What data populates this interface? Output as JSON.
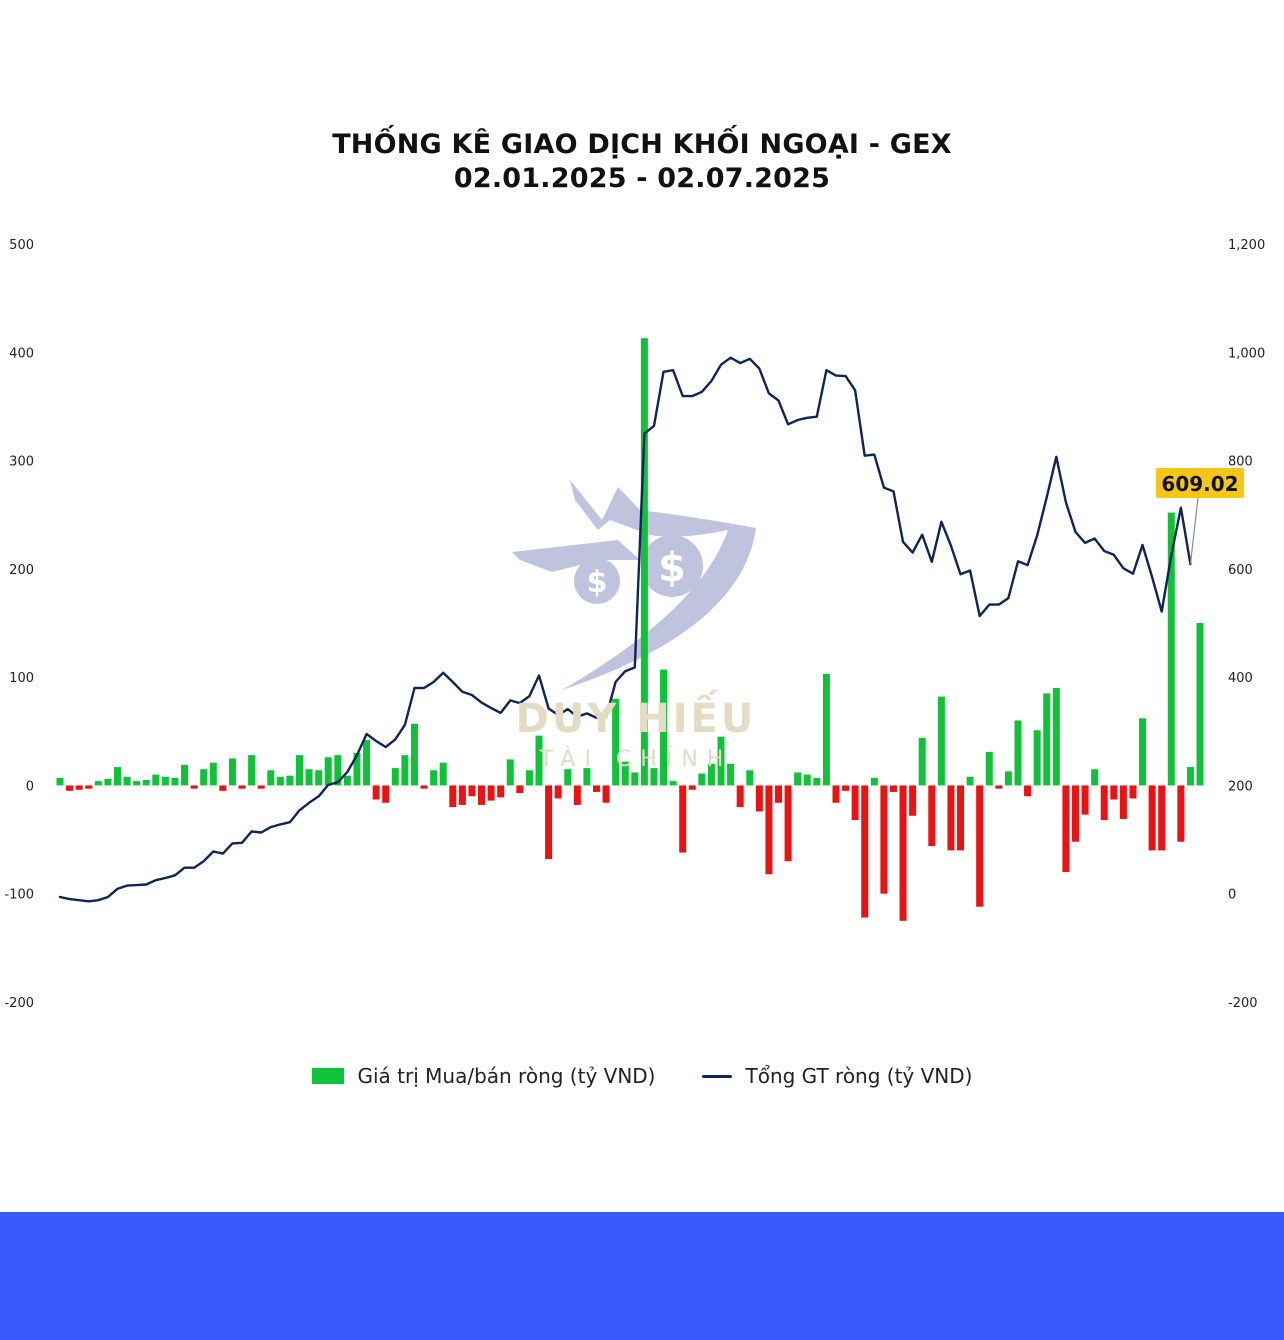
{
  "title": {
    "line1": "THỐNG KÊ GIAO DỊCH KHỐI NGOẠI - GEX",
    "line2": "02.01.2025 - 02.07.2025"
  },
  "watermark": {
    "name": "DUY HIẾU",
    "subtitle": "TÀI CHÍNH"
  },
  "colors": {
    "positive": "#10c238",
    "negative": "#ee1111",
    "line": "#0f2557",
    "callout": "#f5c518",
    "footer": "#3a5afe",
    "watermark_logo": "#bcc0dc",
    "watermark_text": "#e2dcc2"
  },
  "chart_data": {
    "type": "bar",
    "left_axis": {
      "ylim": [
        -200,
        500
      ],
      "ticks": [
        "-200",
        "-100",
        "0",
        "100",
        "200",
        "300",
        "400",
        "500"
      ]
    },
    "right_axis": {
      "ylim": [
        -200,
        1200
      ],
      "ticks": [
        "-200",
        "0",
        "200",
        "400",
        "600",
        "800",
        "1,000",
        "1,200"
      ]
    },
    "grid": false,
    "legend_position": "bottom",
    "series": [
      {
        "name": "Giá trị Mua/bán ròng (tỷ VND)",
        "kind": "bar",
        "axis": "left",
        "values": [
          7,
          -5,
          -4,
          -3,
          4,
          6,
          17,
          8,
          4,
          5,
          10,
          8,
          7,
          19,
          -3,
          15,
          21,
          -5,
          25,
          -3,
          28,
          -3,
          14,
          8,
          9,
          28,
          15,
          14,
          26,
          28,
          9,
          30,
          42,
          -13,
          -16,
          16,
          28,
          57,
          -3,
          14,
          21,
          -20,
          -18,
          -10,
          -18,
          -14,
          -11,
          24,
          -7,
          14,
          46,
          -68,
          -12,
          15,
          -18,
          16,
          -6,
          -16,
          80,
          22,
          12,
          413,
          16,
          107,
          4,
          -62,
          -4,
          11,
          20,
          45,
          20,
          -20,
          14,
          -24,
          -82,
          -16,
          -70,
          12,
          10,
          7,
          103,
          -16,
          -5,
          -32,
          -122,
          7,
          -100,
          -6,
          -125,
          -28,
          44,
          -56,
          82,
          -60,
          -60,
          8,
          -112,
          31,
          -3,
          13,
          60,
          -10,
          51,
          85,
          90,
          -80,
          -52,
          -27,
          15,
          -32,
          -13,
          -31,
          -12,
          62,
          -60,
          -60,
          252,
          -52,
          17,
          150
        ]
      },
      {
        "name": "Tổng GT ròng (tỷ VND)",
        "kind": "line",
        "axis": "right",
        "values": [
          -6,
          -10,
          -12,
          -14,
          -12,
          -6,
          9,
          15,
          16,
          17,
          25,
          29,
          34,
          48,
          48,
          60,
          78,
          74,
          93,
          94,
          115,
          113,
          123,
          128,
          132,
          154,
          168,
          180,
          201,
          206,
          225,
          256,
          295,
          282,
          271,
          285,
          312,
          380,
          380,
          391,
          408,
          391,
          373,
          367,
          353,
          343,
          334,
          357,
          352,
          365,
          403,
          342,
          330,
          341,
          327,
          333,
          325,
          326,
          391,
          411,
          418,
          850,
          864,
          964,
          967,
          919,
          919,
          927,
          947,
          977,
          990,
          980,
          988,
          970,
          924,
          911,
          867,
          875,
          879,
          881,
          967,
          957,
          956,
          930,
          809,
          811,
          750,
          743,
          650,
          630,
          663,
          613,
          687,
          643,
          590,
          597,
          513,
          534,
          534,
          546,
          614,
          607,
          662,
          732,
          807,
          723,
          668,
          648,
          656,
          633,
          626,
          601,
          591,
          644,
          585,
          521,
          625,
          713,
          609
        ],
        "last_value_label": "609.02"
      }
    ]
  }
}
